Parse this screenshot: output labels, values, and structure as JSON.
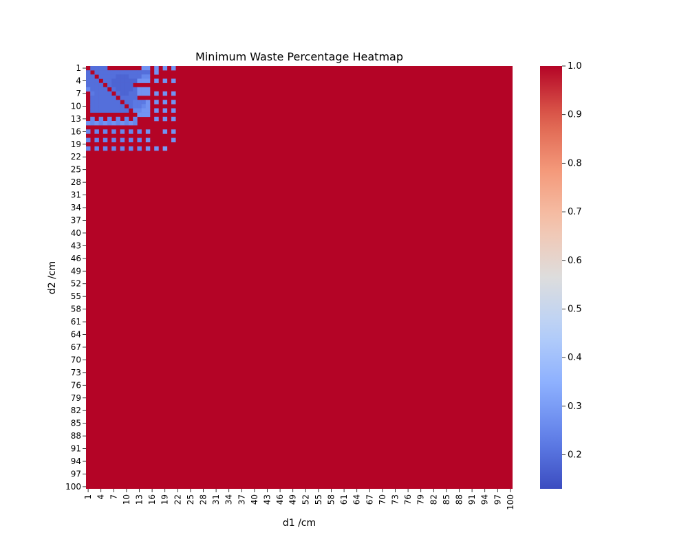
{
  "chart_data": {
    "type": "heatmap",
    "title": "Minimum Waste Percentage Heatmap",
    "xlabel": "d1 /cm",
    "ylabel": "d2 /cm",
    "x_range": [
      1,
      100
    ],
    "y_range": [
      1,
      100
    ],
    "x_tick_labels": [
      "1",
      "4",
      "7",
      "10",
      "13",
      "16",
      "19",
      "22",
      "25",
      "28",
      "31",
      "34",
      "37",
      "40",
      "43",
      "46",
      "49",
      "52",
      "55",
      "58",
      "61",
      "64",
      "67",
      "70",
      "73",
      "76",
      "79",
      "82",
      "85",
      "88",
      "91",
      "94",
      "97",
      "100"
    ],
    "y_tick_labels": [
      "1",
      "4",
      "7",
      "10",
      "13",
      "16",
      "19",
      "22",
      "25",
      "28",
      "31",
      "34",
      "37",
      "40",
      "43",
      "46",
      "49",
      "52",
      "55",
      "58",
      "61",
      "64",
      "67",
      "70",
      "73",
      "76",
      "79",
      "82",
      "85",
      "88",
      "91",
      "94",
      "97",
      "100"
    ],
    "colormap": "coolwarm",
    "vmin": 0.13,
    "vmax": 1.0,
    "colorbar_ticks": [
      "0.2",
      "0.3",
      "0.4",
      "0.5",
      "0.6",
      "0.7",
      "0.8",
      "0.9",
      "1.0"
    ],
    "colorbar_tick_values": [
      0.2,
      0.3,
      0.4,
      0.5,
      0.6,
      0.7,
      0.8,
      0.9,
      1.0
    ],
    "default_value": 1.0,
    "note_values": "Cells outside the rows below are 1.0",
    "rows": [
      {
        "d2": 1,
        "values": [
          1.0,
          0.2,
          0.2,
          0.2,
          0.2,
          1.0,
          1.0,
          1.0,
          1.0,
          1.0,
          1.0,
          1.0,
          1.0,
          0.28,
          0.28,
          1.0,
          0.28,
          1.0,
          0.28,
          1.0,
          0.28
        ]
      },
      {
        "d2": 2,
        "values": [
          0.2,
          1.0,
          0.2,
          0.2,
          0.2,
          0.2,
          0.2,
          0.2,
          0.2,
          0.2,
          0.2,
          0.2,
          0.2,
          0.2,
          0.2,
          1.0,
          0.28,
          1.0,
          1.0,
          1.0,
          1.0
        ]
      },
      {
        "d2": 3,
        "values": [
          0.2,
          0.2,
          1.0,
          0.2,
          0.2,
          0.2,
          0.2,
          0.18,
          0.18,
          0.18,
          0.2,
          0.2,
          0.2,
          0.25,
          0.25,
          1.0,
          1.0,
          1.0,
          1.0,
          1.0,
          1.0
        ]
      },
      {
        "d2": 4,
        "values": [
          0.2,
          0.2,
          0.2,
          1.0,
          0.2,
          0.2,
          0.18,
          0.18,
          0.18,
          0.18,
          0.18,
          0.18,
          0.28,
          0.28,
          0.28,
          1.0,
          0.28,
          1.0,
          0.28,
          1.0,
          0.28
        ]
      },
      {
        "d2": 5,
        "values": [
          0.2,
          0.2,
          0.2,
          0.2,
          1.0,
          0.2,
          0.18,
          0.18,
          0.18,
          0.18,
          0.18,
          1.0,
          1.0,
          1.0,
          1.0,
          1.0,
          1.0,
          1.0,
          1.0,
          1.0,
          1.0
        ]
      },
      {
        "d2": 6,
        "values": [
          0.25,
          0.2,
          0.2,
          0.2,
          0.2,
          1.0,
          0.2,
          0.18,
          0.18,
          0.18,
          0.18,
          0.2,
          0.28,
          0.28,
          0.28,
          1.0,
          1.0,
          1.0,
          1.0,
          1.0,
          1.0
        ]
      },
      {
        "d2": 7,
        "values": [
          1.0,
          0.22,
          0.2,
          0.2,
          0.2,
          0.2,
          1.0,
          0.2,
          0.18,
          0.18,
          0.2,
          0.2,
          0.28,
          0.28,
          0.28,
          1.0,
          0.28,
          1.0,
          0.28,
          1.0,
          0.28
        ]
      },
      {
        "d2": 8,
        "values": [
          1.0,
          0.2,
          0.2,
          0.2,
          0.2,
          0.2,
          0.2,
          1.0,
          0.2,
          0.2,
          0.2,
          0.2,
          1.0,
          1.0,
          1.0,
          1.0,
          1.0,
          1.0,
          1.0,
          1.0,
          1.0
        ]
      },
      {
        "d2": 9,
        "values": [
          1.0,
          0.2,
          0.2,
          0.2,
          0.2,
          0.2,
          0.2,
          0.2,
          1.0,
          0.2,
          0.2,
          0.22,
          0.22,
          0.22,
          0.28,
          1.0,
          0.28,
          1.0,
          0.28,
          1.0,
          0.28
        ]
      },
      {
        "d2": 10,
        "values": [
          1.0,
          0.2,
          0.2,
          0.2,
          0.2,
          0.2,
          0.2,
          0.2,
          0.2,
          1.0,
          0.2,
          0.22,
          0.22,
          0.25,
          0.28,
          1.0,
          1.0,
          1.0,
          1.0,
          1.0,
          1.0
        ]
      },
      {
        "d2": 11,
        "values": [
          1.0,
          0.2,
          0.2,
          0.2,
          0.2,
          0.2,
          0.2,
          0.2,
          0.2,
          0.2,
          1.0,
          0.25,
          0.25,
          0.28,
          0.28,
          1.0,
          0.28,
          1.0,
          0.28,
          1.0,
          0.28
        ]
      },
      {
        "d2": 12,
        "values": [
          1.0,
          1.0,
          1.0,
          1.0,
          1.0,
          1.0,
          1.0,
          1.0,
          1.0,
          1.0,
          1.0,
          1.0,
          0.28,
          0.28,
          0.28,
          1.0,
          1.0,
          1.0,
          1.0,
          1.0,
          1.0
        ]
      },
      {
        "d2": 13,
        "values": [
          1.0,
          0.25,
          1.0,
          0.25,
          1.0,
          0.25,
          1.0,
          0.25,
          1.0,
          0.25,
          1.0,
          0.25,
          1.0,
          1.0,
          1.0,
          1.0,
          0.28,
          1.0,
          0.28,
          1.0,
          0.28
        ]
      },
      {
        "d2": 14,
        "values": [
          0.28,
          0.25,
          0.28,
          0.25,
          0.28,
          0.25,
          0.28,
          0.25,
          0.28,
          0.25,
          0.28,
          0.25,
          1.0,
          1.0,
          1.0,
          1.0,
          1.0,
          1.0,
          1.0,
          1.0,
          1.0
        ]
      },
      {
        "d2": 15,
        "values": [
          1.0,
          1.0,
          1.0,
          1.0,
          1.0,
          1.0,
          1.0,
          1.0,
          1.0,
          1.0,
          1.0,
          1.0,
          1.0,
          1.0,
          1.0,
          1.0,
          1.0,
          1.0,
          1.0,
          1.0,
          1.0
        ]
      },
      {
        "d2": 16,
        "values": [
          0.25,
          1.0,
          0.25,
          1.0,
          0.25,
          1.0,
          0.25,
          1.0,
          0.25,
          1.0,
          0.25,
          1.0,
          0.25,
          1.0,
          0.28,
          1.0,
          1.0,
          1.0,
          0.28,
          1.0,
          0.28
        ]
      },
      {
        "d2": 17,
        "values": [
          1.0,
          1.0,
          1.0,
          1.0,
          1.0,
          1.0,
          1.0,
          1.0,
          1.0,
          1.0,
          1.0,
          1.0,
          1.0,
          1.0,
          1.0,
          1.0,
          1.0,
          1.0,
          1.0,
          1.0,
          1.0
        ]
      },
      {
        "d2": 18,
        "values": [
          0.25,
          1.0,
          0.25,
          1.0,
          0.25,
          1.0,
          0.25,
          1.0,
          0.25,
          1.0,
          0.25,
          1.0,
          0.25,
          1.0,
          0.28,
          1.0,
          1.0,
          1.0,
          1.0,
          1.0,
          0.28
        ]
      },
      {
        "d2": 19,
        "values": [
          1.0,
          1.0,
          1.0,
          1.0,
          1.0,
          1.0,
          1.0,
          1.0,
          1.0,
          1.0,
          1.0,
          1.0,
          1.0,
          1.0,
          1.0,
          1.0,
          1.0,
          1.0,
          1.0,
          1.0,
          1.0
        ]
      },
      {
        "d2": 20,
        "values": [
          0.25,
          1.0,
          0.25,
          1.0,
          0.25,
          1.0,
          0.25,
          1.0,
          0.25,
          1.0,
          0.25,
          1.0,
          0.25,
          1.0,
          0.28,
          1.0,
          0.28,
          1.0,
          0.3,
          1.0,
          1.0
        ]
      }
    ]
  }
}
